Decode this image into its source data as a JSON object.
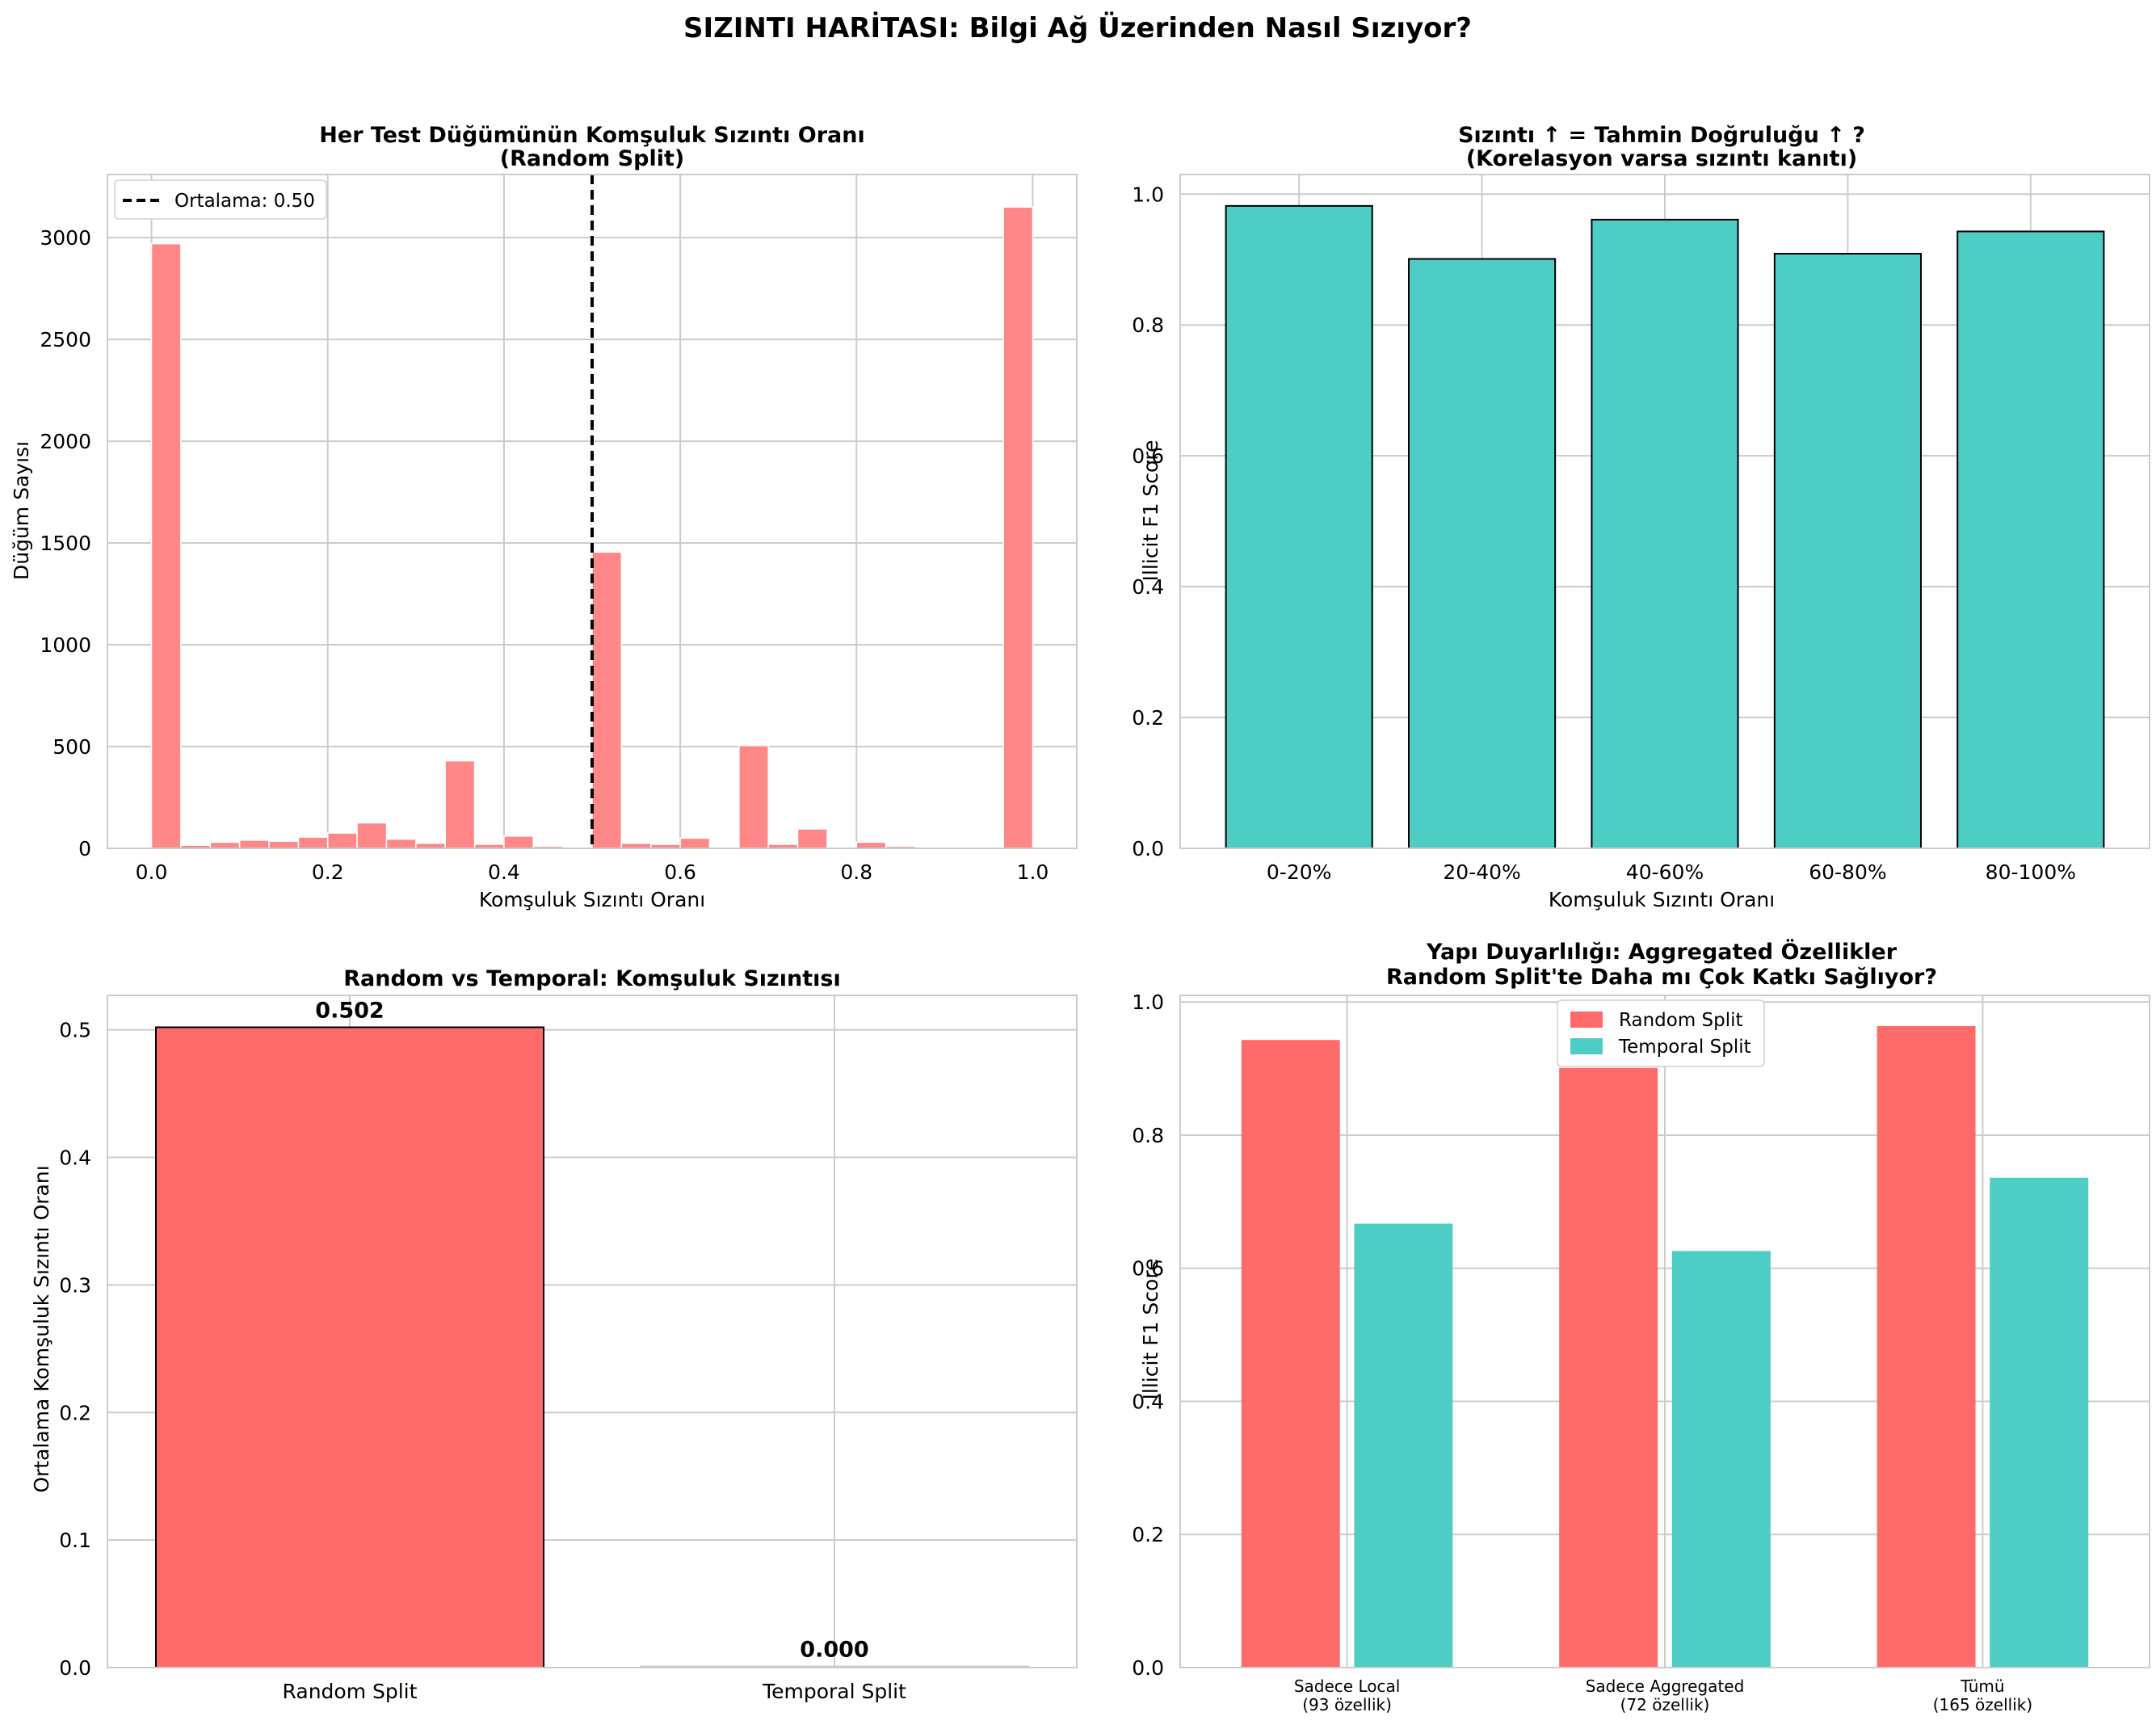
{
  "figure": {
    "suptitle": "SIZINTI HARİTASI: Bilgi Ağ Üzerinden Nasıl Sızıyor?"
  },
  "colors": {
    "red_hist": "#ff8787",
    "red": "#ff6b6b",
    "teal": "#4ecdc4",
    "grid": "#cccccc",
    "mean_line": "#000000"
  },
  "chart_data": [
    {
      "type": "bar",
      "subtype": "histogram",
      "title_lines": [
        "Her Test Düğümünün Komşuluk Sızıntı Oranı",
        "(Random Split)"
      ],
      "xlabel": "Komşuluk Sızıntı Oranı",
      "ylabel": "Düğüm Sayısı",
      "xlim": [
        -0.05,
        1.05
      ],
      "ylim": [
        0,
        3310
      ],
      "xticks": [
        0.0,
        0.2,
        0.4,
        0.6,
        0.8,
        1.0
      ],
      "xtick_labels": [
        "0.0",
        "0.2",
        "0.4",
        "0.6",
        "0.8",
        "1.0"
      ],
      "yticks": [
        0,
        500,
        1000,
        1500,
        2000,
        2500,
        3000
      ],
      "ytick_labels": [
        "0",
        "500",
        "1000",
        "1500",
        "2000",
        "2500",
        "3000"
      ],
      "bin_edges": [
        0.0,
        0.0333,
        0.0667,
        0.1,
        0.1333,
        0.1667,
        0.2,
        0.2333,
        0.2667,
        0.3,
        0.3333,
        0.3667,
        0.4,
        0.4333,
        0.4667,
        0.5,
        0.5333,
        0.5667,
        0.6,
        0.6333,
        0.6667,
        0.7,
        0.7333,
        0.7667,
        0.8,
        0.8333,
        0.8667,
        0.9,
        0.9333,
        0.9667,
        1.0
      ],
      "counts": [
        2970,
        15,
        30,
        40,
        35,
        55,
        75,
        125,
        45,
        25,
        430,
        20,
        60,
        10,
        0,
        1455,
        25,
        20,
        50,
        0,
        505,
        20,
        95,
        0,
        30,
        10,
        0,
        0,
        0,
        3150
      ],
      "mean_line": {
        "x": 0.5,
        "label": "Ortalama: 0.50"
      },
      "legend": "top-left",
      "grid": true
    },
    {
      "type": "bar",
      "title_lines": [
        "Sızıntı ↑ = Tahmin Doğruluğu ↑ ?",
        "(Korelasyon varsa sızıntı kanıtı)"
      ],
      "xlabel": "Komşuluk Sızıntı Oranı",
      "ylabel": "Illicit F1 Score",
      "categories": [
        "0-20%",
        "20-40%",
        "40-60%",
        "60-80%",
        "80-100%"
      ],
      "values": [
        0.982,
        0.901,
        0.961,
        0.909,
        0.943
      ],
      "ylim": [
        0,
        1.03
      ],
      "yticks": [
        0.0,
        0.2,
        0.4,
        0.6,
        0.8,
        1.0
      ],
      "ytick_labels": [
        "0.0",
        "0.2",
        "0.4",
        "0.6",
        "0.8",
        "1.0"
      ],
      "grid": true
    },
    {
      "type": "bar",
      "title_lines": [
        "Random vs Temporal: Komşuluk Sızıntısı"
      ],
      "xlabel": "",
      "ylabel": "Ortalama Komşuluk Sızıntı Oranı",
      "categories": [
        "Random Split",
        "Temporal Split"
      ],
      "values": [
        0.502,
        0.0
      ],
      "value_labels": [
        "0.502",
        "0.000"
      ],
      "ylim": [
        0,
        0.527
      ],
      "yticks": [
        0.0,
        0.1,
        0.2,
        0.3,
        0.4,
        0.5
      ],
      "ytick_labels": [
        "0.0",
        "0.1",
        "0.2",
        "0.3",
        "0.4",
        "0.5"
      ],
      "grid": true
    },
    {
      "type": "bar",
      "title_lines": [
        "Yapı Duyarlılığı: Aggregated Özellikler",
        "Random Split'te Daha mı Çok Katkı Sağlıyor?"
      ],
      "xlabel": "",
      "ylabel": "Illicit F1 Score",
      "categories": [
        [
          "Sadece Local",
          "(93 özellik)"
        ],
        [
          "Sadece Aggregated",
          "(72 özellik)"
        ],
        [
          "Tümü",
          "(165 özellik)"
        ]
      ],
      "series": [
        {
          "name": "Random Split",
          "values": [
            0.943,
            0.901,
            0.964
          ]
        },
        {
          "name": "Temporal Split",
          "values": [
            0.667,
            0.626,
            0.736
          ]
        }
      ],
      "ylim": [
        0,
        1.01
      ],
      "yticks": [
        0.0,
        0.2,
        0.4,
        0.6,
        0.8,
        1.0
      ],
      "ytick_labels": [
        "0.0",
        "0.2",
        "0.4",
        "0.6",
        "0.8",
        "1.0"
      ],
      "legend": "top-center",
      "grid": true
    }
  ]
}
